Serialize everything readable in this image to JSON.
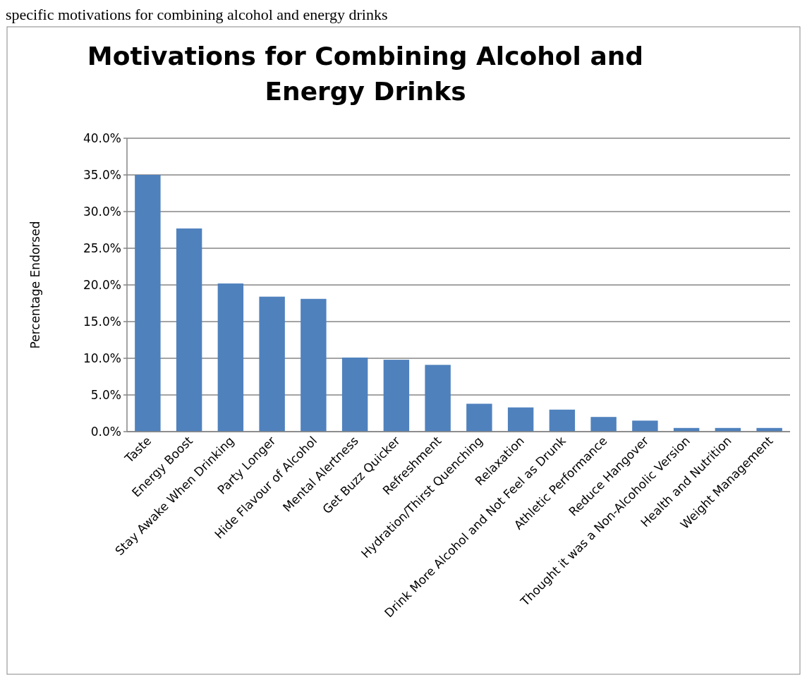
{
  "chart_data": {
    "type": "bar",
    "title": "Motivations for Combining Alcohol and Energy Drinks",
    "ylabel": "Percentage Endorsed",
    "annotations": [
      "specific motivations for combining alcohol and energy drinks"
    ],
    "categories": [
      "Taste",
      "Energy Boost",
      "Stay Awake When Drinking",
      "Party Longer",
      "Hide Flavour of Alcohol",
      "Mental Alertness",
      "Get Buzz Quicker",
      "Refreshment",
      "Hydration/Thirst Quenching",
      "Relaxation",
      "Drink More Alcohol and Not Feel as Drunk",
      "Athletic Performance",
      "Reduce Hangover",
      "Thought it was a Non-Alcoholic Version",
      "Health and Nutrition",
      "Weight Management"
    ],
    "values": [
      35.0,
      27.7,
      20.2,
      18.4,
      18.1,
      10.1,
      9.8,
      9.1,
      3.8,
      3.3,
      3.0,
      2.0,
      1.5,
      0.5,
      0.5,
      0.5
    ],
    "color": "#4f81bd",
    "ylim": [
      0,
      40
    ],
    "yticks": [
      {
        "value": 0,
        "label": "0.0%"
      },
      {
        "value": 5,
        "label": "5.0%"
      },
      {
        "value": 10,
        "label": "10.0%"
      },
      {
        "value": 15,
        "label": "15.0%"
      },
      {
        "value": 20,
        "label": "20.0%"
      },
      {
        "value": 25,
        "label": "25.0%"
      },
      {
        "value": 30,
        "label": "30.0%"
      },
      {
        "value": 35,
        "label": "35.0%"
      },
      {
        "value": 40,
        "label": "40.0%"
      }
    ],
    "grid": "y"
  }
}
